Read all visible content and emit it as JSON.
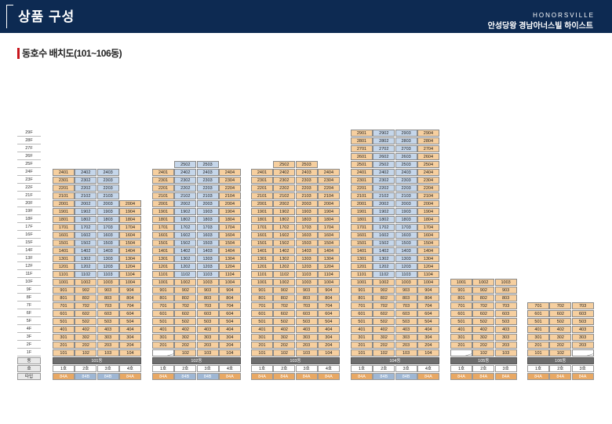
{
  "header": {
    "title": "상품 구성",
    "brand": "HONORSVILLE",
    "complex_name": "안성당왕 경남아너스빌 하이스트"
  },
  "section": {
    "title": "동호수 배치도(101~106동)"
  },
  "colors": {
    "header_bg": "#0d2a52",
    "accent_red": "#c8161d",
    "unit_orange": "#f6cf9f",
    "unit_blue": "#c5d6ea",
    "type_orange": "#e8a864",
    "type_blue": "#9fb7d4",
    "dong_gray": "#6d6d6d"
  },
  "floors": [
    "29F",
    "28F",
    "27F",
    "26F",
    "25F",
    "24F",
    "23F",
    "22F",
    "21F",
    "20F",
    "19F",
    "18F",
    "17F",
    "16F",
    "15F",
    "14F",
    "13F",
    "12F",
    "11F",
    "10F",
    "9F",
    "8F",
    "7F",
    "6F",
    "5F",
    "4F",
    "3F",
    "2F",
    "1F"
  ],
  "row_labels": {
    "dong": "동",
    "ho": "호",
    "type": "타입"
  },
  "buildings": [
    {
      "name": "101동",
      "lines": [
        {
          "ho": "1호",
          "type": "84A",
          "color": "orange",
          "top": 24,
          "bottom": 1,
          "blue": []
        },
        {
          "ho": "2호",
          "type": "84B",
          "color": "blue",
          "top": 24,
          "bottom": 1,
          "blue": [
            11,
            12,
            13,
            14,
            15,
            16,
            17,
            18,
            19,
            20,
            21,
            22,
            23,
            24
          ]
        },
        {
          "ho": "3호",
          "type": "84B",
          "color": "blue",
          "top": 24,
          "bottom": 1,
          "blue": [
            11,
            12,
            13,
            14,
            15,
            16,
            17,
            18,
            19,
            20,
            21,
            22,
            23,
            24
          ]
        },
        {
          "ho": "4호",
          "type": "84A",
          "color": "orange",
          "top": 20,
          "bottom": 1,
          "blue": []
        }
      ]
    },
    {
      "name": "102동",
      "lines": [
        {
          "ho": "1호",
          "type": "84A",
          "color": "orange",
          "top": 24,
          "bottom": 2,
          "blue": []
        },
        {
          "ho": "2호",
          "type": "84B",
          "color": "blue",
          "top": 25,
          "bottom": 1,
          "blue": [
            11,
            12,
            13,
            14,
            15,
            16,
            17,
            18,
            19,
            20,
            21,
            22,
            23,
            24,
            25
          ]
        },
        {
          "ho": "3호",
          "type": "84B",
          "color": "blue",
          "top": 25,
          "bottom": 1,
          "blue": [
            11,
            12,
            13,
            14,
            15,
            16,
            17,
            18,
            19,
            20,
            21,
            22,
            23,
            24,
            25
          ]
        },
        {
          "ho": "4호",
          "type": "84A",
          "color": "orange",
          "top": 24,
          "bottom": 1,
          "blue": []
        }
      ]
    },
    {
      "name": "103동",
      "lines": [
        {
          "ho": "1호",
          "type": "84A",
          "color": "orange",
          "top": 24,
          "bottom": 1,
          "blue": []
        },
        {
          "ho": "2호",
          "type": "84A",
          "color": "orange",
          "top": 25,
          "bottom": 1,
          "blue": []
        },
        {
          "ho": "3호",
          "type": "84A",
          "color": "orange",
          "top": 25,
          "bottom": 1,
          "blue": []
        },
        {
          "ho": "4호",
          "type": "84A",
          "color": "orange",
          "top": 24,
          "bottom": 1,
          "blue": []
        }
      ]
    },
    {
      "name": "104동",
      "lines": [
        {
          "ho": "1호",
          "type": "84A",
          "color": "orange",
          "top": 29,
          "bottom": 1,
          "blue": []
        },
        {
          "ho": "2호",
          "type": "84B",
          "color": "blue",
          "top": 29,
          "bottom": 1,
          "blue": [
            11,
            12,
            13,
            14,
            15,
            16,
            17,
            18,
            19,
            20,
            21,
            22,
            23,
            24,
            25,
            26,
            27,
            28,
            29
          ]
        },
        {
          "ho": "3호",
          "type": "84B",
          "color": "blue",
          "top": 29,
          "bottom": 1,
          "blue": [
            11,
            12,
            13,
            14,
            15,
            16,
            17,
            18,
            19,
            20,
            21,
            22,
            23,
            24,
            25,
            26,
            27,
            28,
            29
          ]
        },
        {
          "ho": "4호",
          "type": "84A",
          "color": "orange",
          "top": 29,
          "bottom": 1,
          "blue": []
        }
      ]
    },
    {
      "name": "105동",
      "lines": [
        {
          "ho": "1호",
          "type": "84A",
          "color": "orange",
          "top": 10,
          "bottom": 2,
          "blue": []
        },
        {
          "ho": "2호",
          "type": "84A",
          "color": "orange",
          "top": 10,
          "bottom": 1,
          "blue": []
        },
        {
          "ho": "3호",
          "type": "84A",
          "color": "orange",
          "top": 10,
          "bottom": 1,
          "blue": []
        }
      ]
    },
    {
      "name": "106동",
      "lines": [
        {
          "ho": "1호",
          "type": "84A",
          "color": "orange",
          "top": 7,
          "bottom": 1,
          "blue": []
        },
        {
          "ho": "2호",
          "type": "84A",
          "color": "orange",
          "top": 7,
          "bottom": 1,
          "blue": []
        },
        {
          "ho": "3호",
          "type": "84A",
          "color": "orange",
          "top": 7,
          "bottom": 2,
          "blue": []
        }
      ]
    }
  ]
}
